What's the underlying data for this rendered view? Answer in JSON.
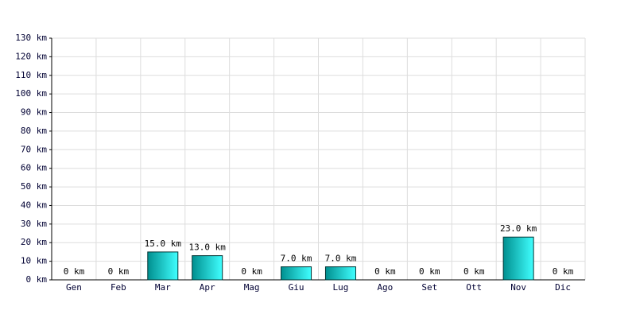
{
  "chart_data": {
    "type": "bar",
    "categories": [
      "Gen",
      "Feb",
      "Mar",
      "Apr",
      "Mag",
      "Giu",
      "Lug",
      "Ago",
      "Set",
      "Ott",
      "Nov",
      "Dic"
    ],
    "values": [
      0,
      0,
      15,
      13,
      0,
      7,
      7,
      0,
      0,
      0,
      23,
      0
    ],
    "value_labels": [
      "0 km",
      "0 km",
      "15.0 km",
      "13.0 km",
      "0 km",
      "7.0 km",
      "7.0 km",
      "0 km",
      "0 km",
      "0 km",
      "23.0 km",
      "0 km"
    ],
    "color": "#00cccc",
    "ylim": [
      0,
      130
    ],
    "yticks": [
      {
        "value": 0,
        "label": "0 km"
      },
      {
        "value": 10,
        "label": "10 km"
      },
      {
        "value": 20,
        "label": "20 km"
      },
      {
        "value": 30,
        "label": "30 km"
      },
      {
        "value": 40,
        "label": "40 km"
      },
      {
        "value": 50,
        "label": "50 km"
      },
      {
        "value": 60,
        "label": "60 km"
      },
      {
        "value": 70,
        "label": "70 km"
      },
      {
        "value": 80,
        "label": "80 km"
      },
      {
        "value": 90,
        "label": "90 km"
      },
      {
        "value": 100,
        "label": "100 km"
      },
      {
        "value": 110,
        "label": "110 km"
      },
      {
        "value": 120,
        "label": "120 km"
      },
      {
        "value": 130,
        "label": "130 km"
      }
    ],
    "grid": true
  }
}
